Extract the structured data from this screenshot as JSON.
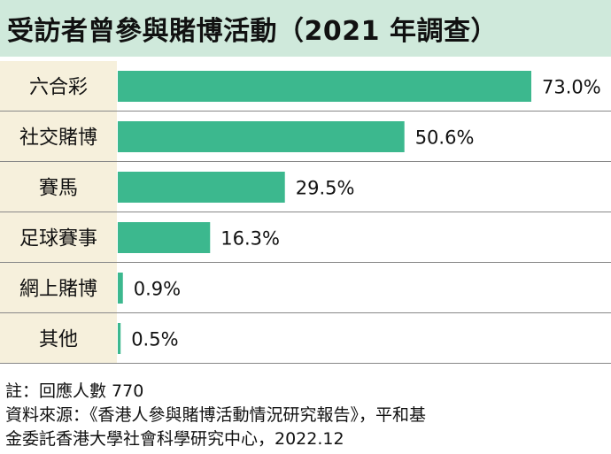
{
  "title": "受訪者曾參與賭博活動（2021 年調查）",
  "chart_data": {
    "type": "bar",
    "orientation": "horizontal",
    "categories": [
      "六合彩",
      "社交賭博",
      "賽馬",
      "足球賽事",
      "網上賭博",
      "其他"
    ],
    "values": [
      73.0,
      50.6,
      29.5,
      16.3,
      0.9,
      0.5
    ],
    "value_labels": [
      "73.0%",
      "50.6%",
      "29.5%",
      "16.3%",
      "0.9%",
      "0.5%"
    ],
    "unit": "%",
    "xlim": [
      0,
      73
    ],
    "grid": false,
    "bar_color": "#3cb88e",
    "label_panel_color": "#f6f0dc"
  },
  "footer": {
    "note": "註：回應人數 770",
    "source_line1": "資料來源：《香港人參與賭博活動情況研究報告》，平和基",
    "source_line2": "金委託香港大學社會科學研究中心，2022.12"
  },
  "colors": {
    "title_bg": "#cfe9db",
    "bar": "#3cb88e",
    "label_panel": "#f6f0dc",
    "row_divider": "#888888"
  }
}
